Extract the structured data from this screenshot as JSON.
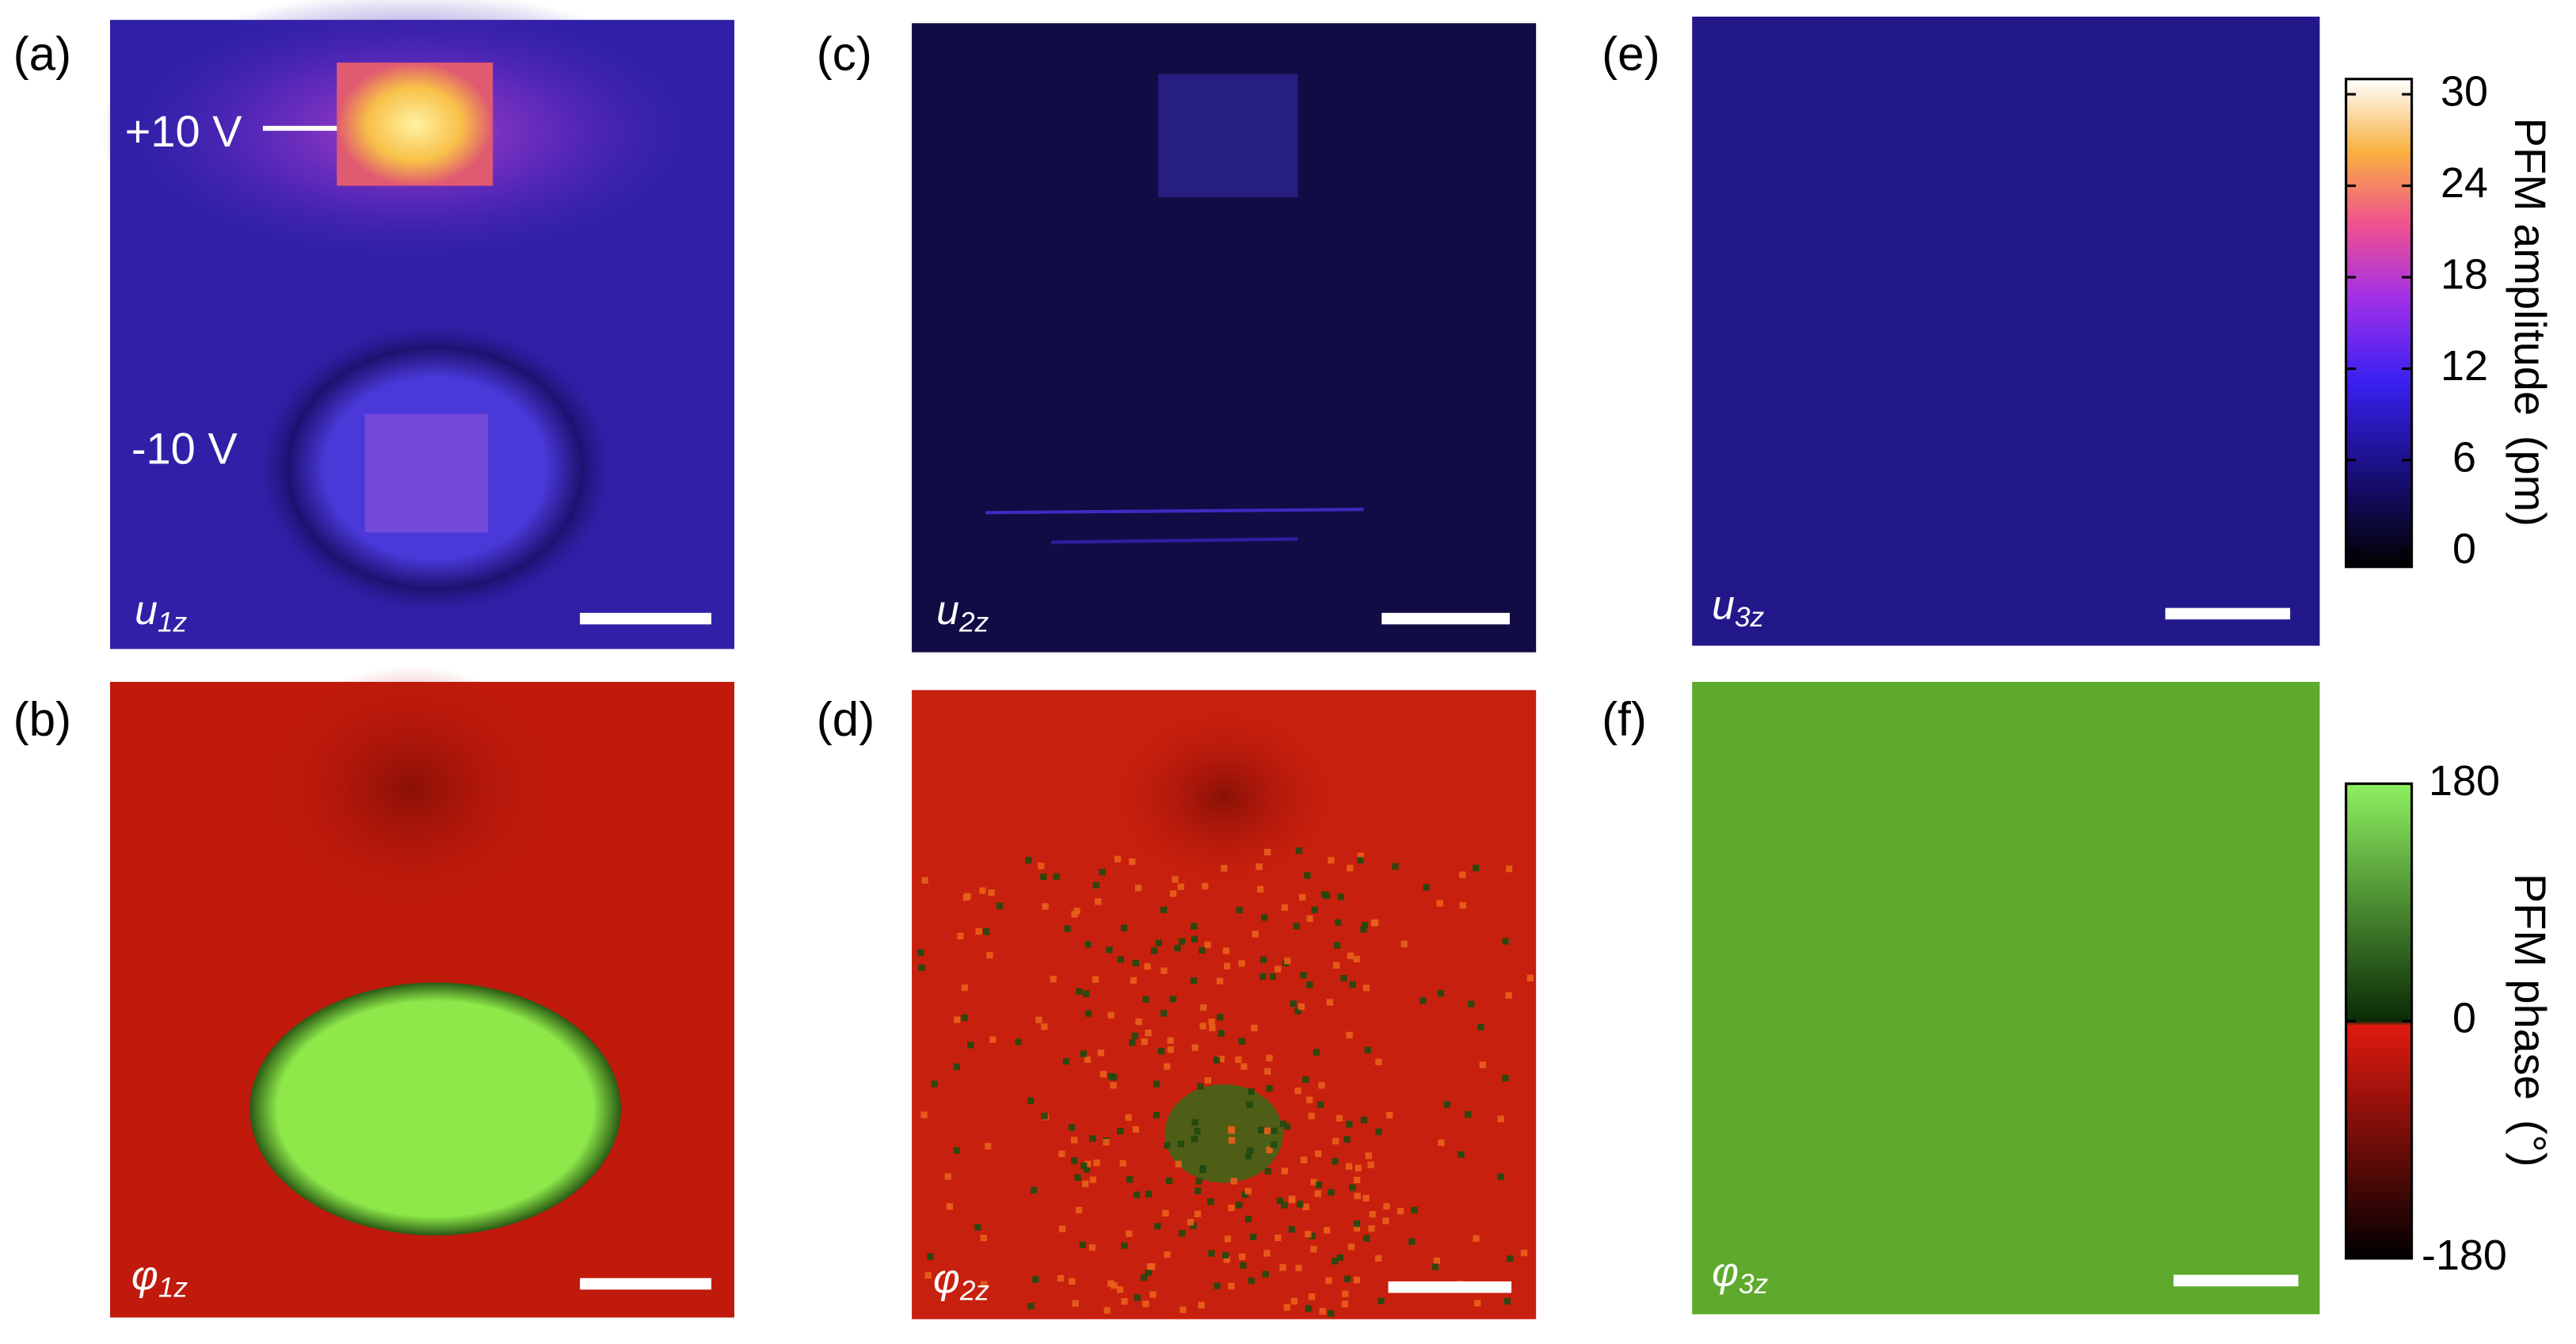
{
  "panels": [
    {
      "label": "(a)",
      "map": {
        "symbol": "u",
        "subscript": "1z"
      },
      "annotations": [
        "+10 V",
        "-10 V"
      ]
    },
    {
      "label": "(b)",
      "map": {
        "symbol": "φ",
        "subscript": "1z"
      }
    },
    {
      "label": "(c)",
      "map": {
        "symbol": "u",
        "subscript": "2z"
      }
    },
    {
      "label": "(d)",
      "map": {
        "symbol": "φ",
        "subscript": "2z"
      }
    },
    {
      "label": "(e)",
      "map": {
        "symbol": "u",
        "subscript": "3z"
      }
    },
    {
      "label": "(f)",
      "map": {
        "symbol": "φ",
        "subscript": "3z"
      }
    }
  ],
  "colorbars": [
    {
      "title": "PFM amplitude",
      "unit": "(pm)",
      "lim": [
        -1,
        31
      ],
      "ticks": [
        0,
        6,
        12,
        18,
        24,
        30
      ]
    },
    {
      "title": "PFM phase",
      "unit": "(°)",
      "lim": [
        -180,
        180
      ],
      "ticks": [
        -180,
        0,
        180
      ]
    }
  ]
}
